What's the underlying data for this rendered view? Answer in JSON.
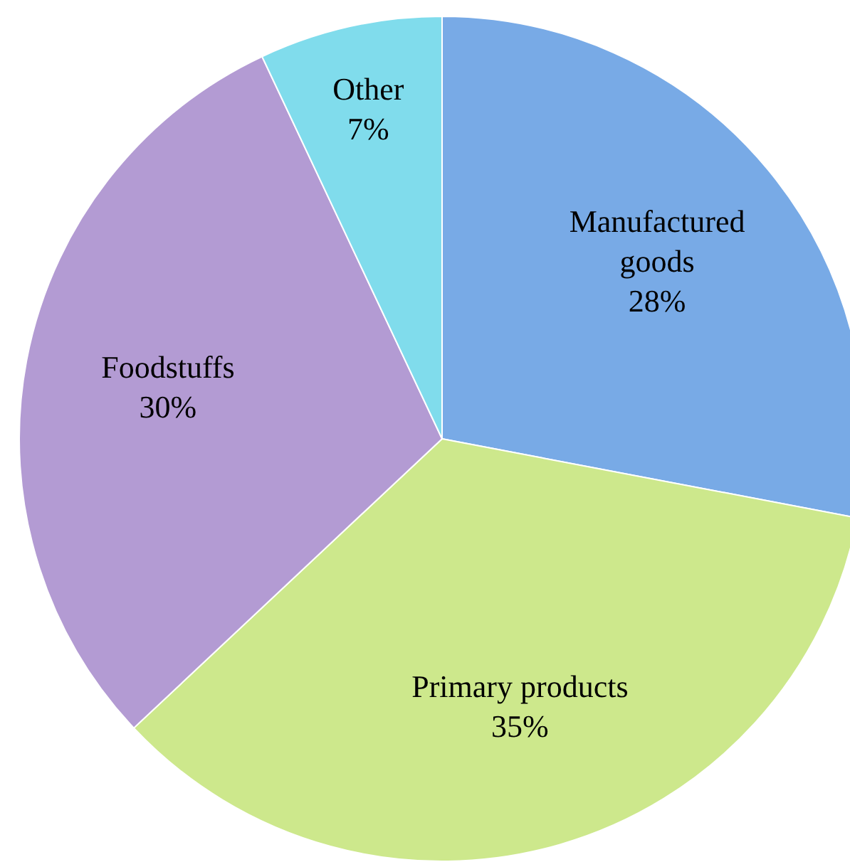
{
  "chart_data": {
    "type": "pie",
    "categories": [
      "Manufactured goods",
      "Primary products",
      "Foodstuffs",
      "Other"
    ],
    "values": [
      28,
      35,
      30,
      7
    ],
    "value_labels": [
      "28%",
      "35%",
      "30%",
      "7%"
    ],
    "colors": [
      "#78aae6",
      "#cde88c",
      "#b39bd3",
      "#80dcec"
    ]
  }
}
